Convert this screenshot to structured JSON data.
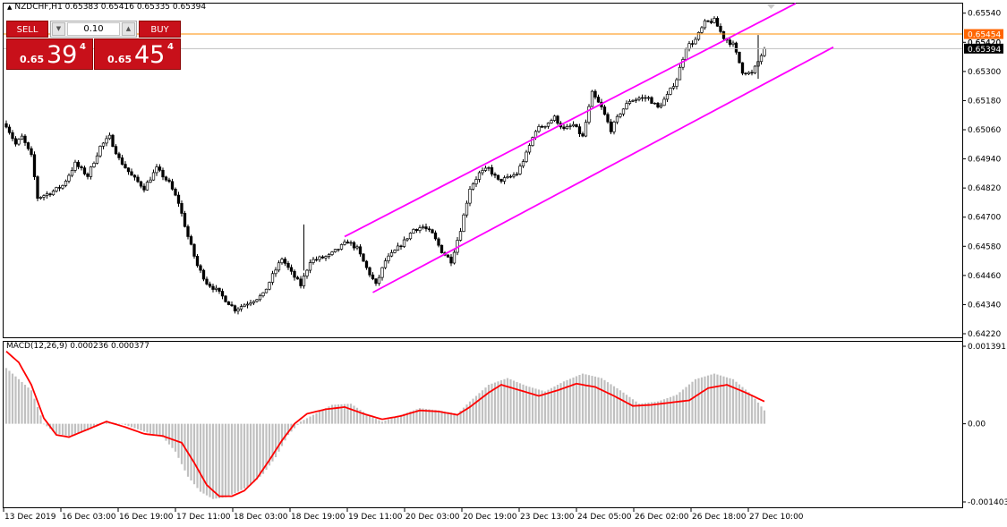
{
  "header": {
    "symbol_line": "NZDCHF,H1  0.65383 0.65416 0.65335 0.65394"
  },
  "trade_panel": {
    "sell_label": "SELL",
    "buy_label": "BUY",
    "volume": "0.10",
    "sell_small": "0.65",
    "sell_big": "39",
    "sell_sup": "4",
    "buy_small": "0.65",
    "buy_big": "45",
    "buy_sup": "4"
  },
  "macd_label": "MACD(12,26,9) 0.000236 0.000377",
  "colors": {
    "up_candle": "#ffffff",
    "down_candle": "#000000",
    "channel": "#ff00ff",
    "ask_line": "#ff8c00",
    "bid_line": "#bfbfbf",
    "macd_hist": "#c0c0c0",
    "signal": "#ff0000",
    "ask_tag": "#ff6600",
    "bid_tag": "#000000"
  },
  "chart_data": [
    {
      "type": "candlestick",
      "symbol": "NZDCHF",
      "timeframe": "H1",
      "ylim": [
        0.6422,
        0.6555
      ],
      "y_ticks": [
        "0.65540",
        "0.65420",
        "0.65300",
        "0.65180",
        "0.65060",
        "0.64940",
        "0.64820",
        "0.64700",
        "0.64580",
        "0.64460",
        "0.64340",
        "0.64220"
      ],
      "x_ticks": [
        "13 Dec 2019",
        "16 Dec 03:00",
        "16 Dec 19:00",
        "17 Dec 11:00",
        "18 Dec 03:00",
        "18 Dec 19:00",
        "19 Dec 11:00",
        "20 Dec 03:00",
        "20 Dec 19:00",
        "23 Dec 13:00",
        "24 Dec 05:00",
        "26 Dec 02:00",
        "26 Dec 18:00",
        "27 Dec 10:00"
      ],
      "ask_price": "0.65454",
      "bid_price": "0.65394",
      "bid_tag_hidden": "0.65420",
      "close_path": [
        [
          0,
          0.6508
        ],
        [
          3,
          0.65
        ],
        [
          5,
          0.6503
        ],
        [
          8,
          0.6495
        ],
        [
          10,
          0.6478
        ],
        [
          14,
          0.648
        ],
        [
          18,
          0.6483
        ],
        [
          22,
          0.6492
        ],
        [
          26,
          0.6487
        ],
        [
          30,
          0.6499
        ],
        [
          33,
          0.6503
        ],
        [
          36,
          0.6494
        ],
        [
          40,
          0.6487
        ],
        [
          44,
          0.6482
        ],
        [
          48,
          0.649
        ],
        [
          52,
          0.6484
        ],
        [
          55,
          0.6476
        ],
        [
          58,
          0.6462
        ],
        [
          61,
          0.645
        ],
        [
          64,
          0.6443
        ],
        [
          67,
          0.644
        ],
        [
          70,
          0.6436
        ],
        [
          73,
          0.6432
        ],
        [
          76,
          0.6434
        ],
        [
          79,
          0.6436
        ],
        [
          82,
          0.6438
        ],
        [
          85,
          0.6446
        ],
        [
          88,
          0.6453
        ],
        [
          91,
          0.6447
        ],
        [
          94,
          0.6442
        ],
        [
          97,
          0.6452
        ],
        [
          100,
          0.6453
        ],
        [
          103,
          0.6454
        ],
        [
          106,
          0.6457
        ],
        [
          109,
          0.646
        ],
        [
          112,
          0.6457
        ],
        [
          115,
          0.6449
        ],
        [
          118,
          0.6442
        ],
        [
          121,
          0.6452
        ],
        [
          124,
          0.6456
        ],
        [
          127,
          0.646
        ],
        [
          130,
          0.6465
        ],
        [
          133,
          0.6466
        ],
        [
          136,
          0.6463
        ],
        [
          139,
          0.6456
        ],
        [
          142,
          0.6452
        ],
        [
          145,
          0.6465
        ],
        [
          148,
          0.6482
        ],
        [
          151,
          0.6488
        ],
        [
          154,
          0.649
        ],
        [
          157,
          0.6485
        ],
        [
          160,
          0.6486
        ],
        [
          163,
          0.6488
        ],
        [
          166,
          0.6496
        ],
        [
          169,
          0.6506
        ],
        [
          172,
          0.6508
        ],
        [
          175,
          0.6511
        ],
        [
          178,
          0.6506
        ],
        [
          181,
          0.6508
        ],
        [
          184,
          0.6503
        ],
        [
          187,
          0.6521
        ],
        [
          190,
          0.6515
        ],
        [
          193,
          0.6506
        ],
        [
          196,
          0.6513
        ],
        [
          199,
          0.6518
        ],
        [
          202,
          0.6519
        ],
        [
          205,
          0.6519
        ],
        [
          208,
          0.6515
        ],
        [
          211,
          0.652
        ],
        [
          214,
          0.6527
        ],
        [
          217,
          0.654
        ],
        [
          220,
          0.6543
        ],
        [
          223,
          0.655
        ],
        [
          226,
          0.6551
        ],
        [
          229,
          0.6544
        ],
        [
          232,
          0.6541
        ],
        [
          235,
          0.653
        ],
        [
          238,
          0.6529
        ],
        [
          240,
          0.6534
        ],
        [
          242,
          0.65394
        ]
      ],
      "channel": {
        "upper": [
          [
            108,
            0.6462
          ],
          [
            252,
            0.6558
          ]
        ],
        "lower": [
          [
            117,
            0.6439
          ],
          [
            264,
            0.654
          ]
        ]
      }
    },
    {
      "type": "macd",
      "params": "MACD(12,26,9)",
      "main": "0.000236",
      "signal_value": "0.000377",
      "ylim": [
        -0.001403,
        0.001391
      ],
      "y_ticks": [
        "0.001391",
        "0.00",
        "-0.001403"
      ],
      "hist_path": [
        [
          0,
          0.001
        ],
        [
          8,
          0.0006
        ],
        [
          12,
          0.0
        ],
        [
          16,
          -0.00018
        ],
        [
          20,
          -0.00022
        ],
        [
          26,
          -0.00012
        ],
        [
          32,
          4e-05
        ],
        [
          38,
          -2e-05
        ],
        [
          44,
          -0.00014
        ],
        [
          50,
          -0.00024
        ],
        [
          54,
          -0.0005
        ],
        [
          58,
          -0.00095
        ],
        [
          62,
          -0.00122
        ],
        [
          66,
          -0.00135
        ],
        [
          70,
          -0.00132
        ],
        [
          74,
          -0.00122
        ],
        [
          78,
          -0.0011
        ],
        [
          82,
          -0.0009
        ],
        [
          86,
          -0.0006
        ],
        [
          90,
          -0.0002
        ],
        [
          94,
          4e-05
        ],
        [
          98,
          0.00016
        ],
        [
          104,
          0.00034
        ],
        [
          110,
          0.00036
        ],
        [
          116,
          0.00014
        ],
        [
          120,
          4e-05
        ],
        [
          126,
          0.00016
        ],
        [
          132,
          0.00028
        ],
        [
          138,
          0.00024
        ],
        [
          144,
          0.00018
        ],
        [
          148,
          0.0004
        ],
        [
          154,
          0.0007
        ],
        [
          160,
          0.00082
        ],
        [
          166,
          0.00068
        ],
        [
          172,
          0.00058
        ],
        [
          178,
          0.00076
        ],
        [
          184,
          0.0009
        ],
        [
          190,
          0.00082
        ],
        [
          196,
          0.0006
        ],
        [
          202,
          0.00036
        ],
        [
          208,
          0.0004
        ],
        [
          214,
          0.00052
        ],
        [
          220,
          0.0008
        ],
        [
          226,
          0.0009
        ],
        [
          232,
          0.0008
        ],
        [
          238,
          0.00052
        ],
        [
          242,
          0.00024
        ]
      ],
      "signal_path": [
        [
          0,
          0.0013
        ],
        [
          4,
          0.0011
        ],
        [
          8,
          0.0007
        ],
        [
          12,
          0.0001
        ],
        [
          16,
          -0.0002
        ],
        [
          20,
          -0.00024
        ],
        [
          26,
          -0.0001
        ],
        [
          32,
          4e-05
        ],
        [
          38,
          -6e-05
        ],
        [
          44,
          -0.00018
        ],
        [
          50,
          -0.00022
        ],
        [
          56,
          -0.00034
        ],
        [
          60,
          -0.0007
        ],
        [
          64,
          -0.0011
        ],
        [
          68,
          -0.0013
        ],
        [
          72,
          -0.0013
        ],
        [
          76,
          -0.0012
        ],
        [
          80,
          -0.00098
        ],
        [
          84,
          -0.00065
        ],
        [
          88,
          -0.0003
        ],
        [
          92,
          0.0
        ],
        [
          96,
          0.00018
        ],
        [
          102,
          0.00026
        ],
        [
          108,
          0.0003
        ],
        [
          114,
          0.00018
        ],
        [
          120,
          8e-05
        ],
        [
          126,
          0.00014
        ],
        [
          132,
          0.00024
        ],
        [
          138,
          0.00022
        ],
        [
          144,
          0.00016
        ],
        [
          148,
          0.0003
        ],
        [
          154,
          0.00056
        ],
        [
          158,
          0.0007
        ],
        [
          164,
          0.0006
        ],
        [
          170,
          0.0005
        ],
        [
          176,
          0.0006
        ],
        [
          182,
          0.00072
        ],
        [
          188,
          0.00066
        ],
        [
          194,
          0.0005
        ],
        [
          200,
          0.00032
        ],
        [
          206,
          0.00034
        ],
        [
          212,
          0.00038
        ],
        [
          218,
          0.00042
        ],
        [
          224,
          0.00064
        ],
        [
          230,
          0.0007
        ],
        [
          236,
          0.00056
        ],
        [
          242,
          0.0004
        ]
      ]
    }
  ]
}
